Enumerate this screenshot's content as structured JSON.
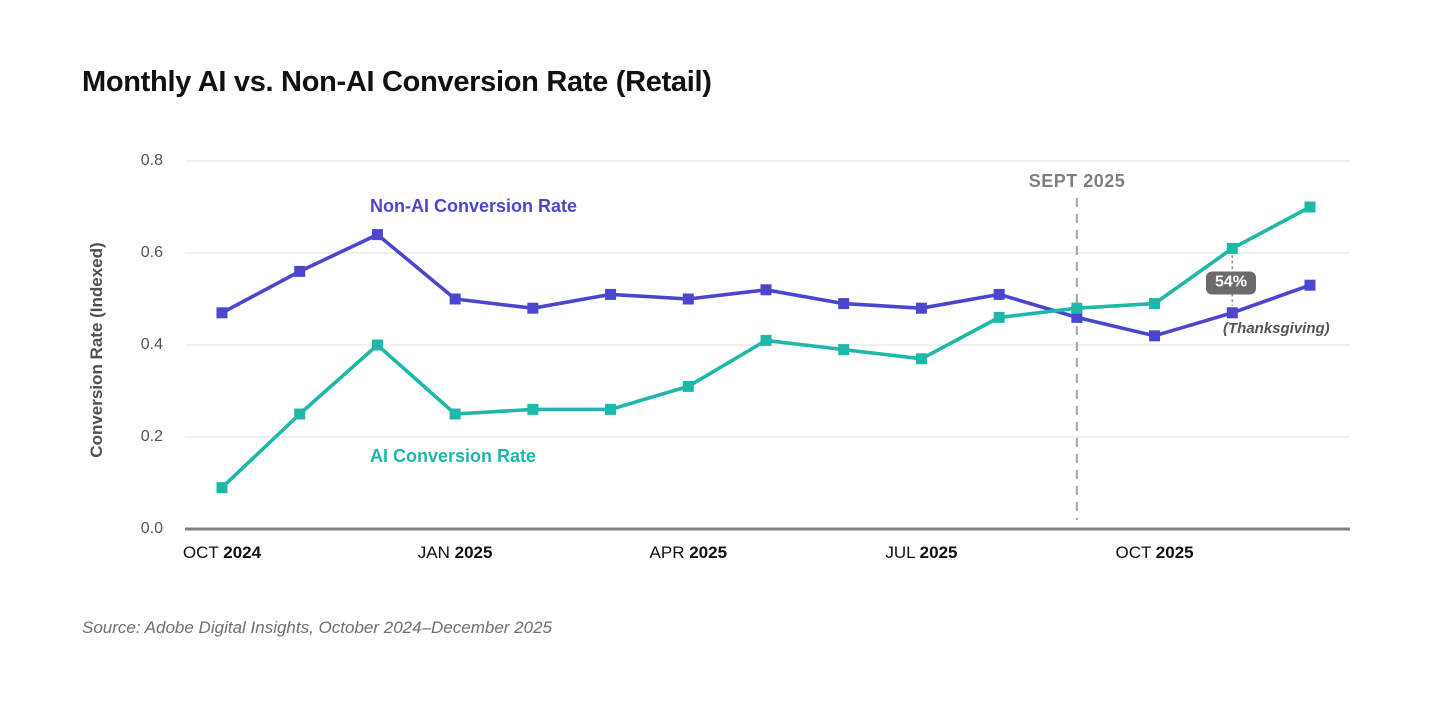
{
  "title": "Monthly AI vs. Non-AI Conversion Rate (Retail)",
  "source": "Source: Adobe Digital Insights, October 2024–December 2025",
  "series_labels": {
    "non_ai": "Non-AI Conversion Rate",
    "ai": "AI Conversion Rate"
  },
  "annotations": {
    "vline_label": "SEPT 2025",
    "badge_label": "54%",
    "badge_sublabel": "(Thanksgiving)"
  },
  "colors": {
    "non_ai": "#4C46CF",
    "ai": "#1EB8A8",
    "grid": "#E6E6E6",
    "axis": "#808080",
    "dashed_line": "#A3A3A3",
    "dotted_connector": "#8A8A8A",
    "badge_bg": "#6B6B6B",
    "badge_text": "#FFFFFF"
  },
  "chart_data": {
    "type": "line",
    "title": "Monthly AI vs. Non-AI Conversion Rate (Retail)",
    "xlabel": "",
    "ylabel": "Conversion Rate (Indexed)",
    "ylim": [
      0.0,
      0.8
    ],
    "yticks": [
      0.0,
      0.2,
      0.4,
      0.6,
      0.8
    ],
    "grid": "horizontal",
    "legend_position": "inline-labels",
    "categories": [
      "Oct 2024",
      "Nov 2024",
      "Dec 2024",
      "Jan 2025",
      "Feb 2025",
      "Mar 2025",
      "Apr 2025",
      "May 2025",
      "Jun 2025",
      "Jul 2025",
      "Aug 2025",
      "Sep 2025",
      "Oct 2025",
      "Nov 2025",
      "Dec 2025"
    ],
    "xtick_labels": [
      {
        "month": "OCT",
        "year": "2024",
        "index": 0
      },
      {
        "month": "JAN",
        "year": "2025",
        "index": 3
      },
      {
        "month": "APR",
        "year": "2025",
        "index": 6
      },
      {
        "month": "JUL",
        "year": "2025",
        "index": 9
      },
      {
        "month": "OCT",
        "year": "2025",
        "index": 12
      }
    ],
    "series": [
      {
        "name": "Non-AI Conversion Rate",
        "color": "#4C46CF",
        "marker": "square",
        "values": [
          0.47,
          0.56,
          0.64,
          0.5,
          0.48,
          0.51,
          0.5,
          0.52,
          0.49,
          0.48,
          0.51,
          0.46,
          0.42,
          0.47,
          0.53
        ]
      },
      {
        "name": "AI Conversion Rate",
        "color": "#1EB8A8",
        "marker": "square",
        "values": [
          0.09,
          0.25,
          0.4,
          0.25,
          0.26,
          0.26,
          0.31,
          0.41,
          0.39,
          0.37,
          0.46,
          0.48,
          0.49,
          0.61,
          0.7
        ]
      }
    ],
    "vline": {
      "label": "SEPT 2025",
      "category_index": 11,
      "style": "dashed"
    },
    "annotation": {
      "text": "54%",
      "sublabel": "(Thanksgiving)",
      "category_index": 13,
      "connects": [
        "AI Conversion Rate",
        "Non-AI Conversion Rate"
      ]
    }
  }
}
